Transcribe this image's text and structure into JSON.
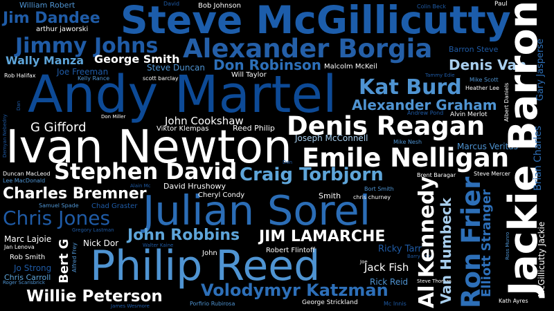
{
  "palette": {
    "background": "#000000",
    "navy": "#0d3c7e",
    "royal": "#1c5dab",
    "medium": "#2a6fb8",
    "sky": "#5ea5d9",
    "pale": "#a9cfee",
    "white": "#ffffff"
  },
  "words": [
    {
      "text": "Steve McGillicutty",
      "color": "#1c5dab"
    },
    {
      "text": "Andy Martel",
      "color": "#0d4a96"
    },
    {
      "text": "Ivan Newton",
      "color": "#ffffff"
    },
    {
      "text": "Julian Sorel",
      "color": "#2b6db6"
    },
    {
      "text": "Philip Reed",
      "color": "#4f94d2"
    },
    {
      "text": "Jackie Barron",
      "color": "#ffffff"
    },
    {
      "text": "Alexander Borgia",
      "color": "#245fa8"
    },
    {
      "text": "Denis Reagan",
      "color": "#ffffff"
    },
    {
      "text": "Emile Nelligan",
      "color": "#ffffff"
    },
    {
      "text": "Stephen David",
      "color": "#ffffff"
    },
    {
      "text": "Jimmy Johns",
      "color": "#1f5ba6"
    },
    {
      "text": "Jim Dandee",
      "color": "#1f5ba6"
    },
    {
      "text": "Kat Burd",
      "color": "#4f94d2"
    },
    {
      "text": "Craig Torbjorn",
      "color": "#5ea5d9"
    },
    {
      "text": "JIM LAMARCHE",
      "color": "#ffffff"
    },
    {
      "text": "Ron Frier",
      "color": "#2d6fb8"
    },
    {
      "text": "Al Kennedy",
      "color": "#ffffff"
    },
    {
      "text": "Chris Jones",
      "color": "#1f5ba6"
    },
    {
      "text": "John Robbins",
      "color": "#5ea5d9"
    },
    {
      "text": "Charles Bremner",
      "color": "#ffffff"
    },
    {
      "text": "Volodymyr Katzman",
      "color": "#2d6fb8"
    },
    {
      "text": "Willie Peterson",
      "color": "#ffffff"
    },
    {
      "text": "Alexander Graham",
      "color": "#4f94d2"
    },
    {
      "text": "Don Robinson",
      "color": "#2d6fb8"
    },
    {
      "text": "Denis Van",
      "color": "#a9cfee"
    },
    {
      "text": "George Smith",
      "color": "#ffffff"
    },
    {
      "text": "Wally Manza",
      "color": "#5ea5d9"
    },
    {
      "text": "G Gifford",
      "color": "#ffffff"
    },
    {
      "text": "Van Humbeck",
      "color": "#a9cfee"
    },
    {
      "text": "Elliott Stranger",
      "color": "#2d6fb8"
    },
    {
      "text": "Bert G",
      "color": "#ffffff"
    },
    {
      "text": "John Cookshaw",
      "color": "#ffffff"
    },
    {
      "text": "Joseph McConnell",
      "color": "#a9cfee"
    },
    {
      "text": "Jack Fish",
      "color": "#ffffff"
    },
    {
      "text": "Rick Reid",
      "color": "#4f94d2"
    },
    {
      "text": "Brian Charles",
      "color": "#2d6fb8"
    },
    {
      "text": "Gary Jasperse",
      "color": "#2d6fb8"
    },
    {
      "text": "McGillicutty Jackie",
      "color": "#ffffff"
    },
    {
      "text": "Ricky Tarr",
      "color": "#1f5ba6"
    },
    {
      "text": "Marcus Veritas",
      "color": "#4f94d2"
    },
    {
      "text": "Barron Steve",
      "color": "#1f5ba6"
    },
    {
      "text": "Steve Duncan",
      "color": "#4f94d2"
    },
    {
      "text": "Joe Freeman",
      "color": "#1f5ba6"
    },
    {
      "text": "Marc Lajoie",
      "color": "#ffffff"
    },
    {
      "text": "Jo Strong",
      "color": "#1f5ba6"
    },
    {
      "text": "Chris Carroll",
      "color": "#5ea5d9"
    },
    {
      "text": "Nick Dor",
      "color": "#ffffff"
    },
    {
      "text": "Rob Smith",
      "color": "#ffffff"
    },
    {
      "text": "Reed Philip",
      "color": "#ffffff"
    },
    {
      "text": "David Hrushowy",
      "color": "#ffffff"
    },
    {
      "text": "William Robert",
      "color": "#4f94d2"
    },
    {
      "text": "arthur jaworski",
      "color": "#ffffff"
    },
    {
      "text": "Bob Johnson",
      "color": "#ffffff"
    },
    {
      "text": "Will Taylor",
      "color": "#ffffff"
    },
    {
      "text": "Malcolm McKeil",
      "color": "#ffffff"
    },
    {
      "text": "Robert Flintoff",
      "color": "#ffffff"
    },
    {
      "text": "Viktor Klempas",
      "color": "#ffffff"
    },
    {
      "text": "Cheryl Condy",
      "color": "#ffffff"
    },
    {
      "text": "Smith",
      "color": "#ffffff"
    },
    {
      "text": "chris churney",
      "color": "#ffffff"
    },
    {
      "text": "Bort Smith",
      "color": "#4f94d2"
    },
    {
      "text": "Brent Baragar",
      "color": "#ffffff"
    },
    {
      "text": "Steve Mercer",
      "color": "#ffffff"
    },
    {
      "text": "Alvin Merlot",
      "color": "#ffffff"
    },
    {
      "text": "Heather Lee",
      "color": "#ffffff"
    },
    {
      "text": "Albert Daniels",
      "color": "#ffffff"
    },
    {
      "text": "Mike Scott",
      "color": "#4f94d2"
    },
    {
      "text": "Mike Nesh",
      "color": "#4f94d2"
    },
    {
      "text": "Andrew Pond",
      "color": "#1f5ba6"
    },
    {
      "text": "Tammy Edie",
      "color": "#1f5ba6"
    },
    {
      "text": "Colin Beck",
      "color": "#1f5ba6"
    },
    {
      "text": "Paul",
      "color": "#ffffff"
    },
    {
      "text": "David",
      "color": "#1f5ba6"
    },
    {
      "text": "Rob Halifax",
      "color": "#ffffff"
    },
    {
      "text": "Kelly Rance",
      "color": "#4f94d2"
    },
    {
      "text": "scott barclay",
      "color": "#ffffff"
    },
    {
      "text": "Don Miller",
      "color": "#ffffff"
    },
    {
      "text": "Duncan MacLeod",
      "color": "#ffffff"
    },
    {
      "text": "Lee MacDonald",
      "color": "#4f94d2"
    },
    {
      "text": "Alain Mc",
      "color": "#1f5ba6"
    },
    {
      "text": "Samuel Spade",
      "color": "#4f94d2"
    },
    {
      "text": "Chad Graster",
      "color": "#1f5ba6"
    },
    {
      "text": "Gregory Lastman",
      "color": "#1f5ba6"
    },
    {
      "text": "Walter Kaine",
      "color": "#1f5ba6"
    },
    {
      "text": "Jan Lenova",
      "color": "#ffffff"
    },
    {
      "text": "Roger Scarisbrick",
      "color": "#4f94d2"
    },
    {
      "text": "Alfred Frey",
      "color": "#4f94d2"
    },
    {
      "text": "James Wesmore",
      "color": "#1f5ba6"
    },
    {
      "text": "Porfirio Rubirosa",
      "color": "#4f94d2"
    },
    {
      "text": "George Strickland",
      "color": "#ffffff"
    },
    {
      "text": "Mc Innis",
      "color": "#1f5ba6"
    },
    {
      "text": "Steve Thomas",
      "color": "#ffffff"
    },
    {
      "text": "Barry Lane",
      "color": "#1f5ba6"
    },
    {
      "text": "Joe",
      "color": "#ffffff"
    },
    {
      "text": "John",
      "color": "#ffffff"
    },
    {
      "text": "Ross Munro",
      "color": "#4f94d2"
    },
    {
      "text": "Kath Ayres",
      "color": "#ffffff"
    },
    {
      "text": "Demyan Nebedny",
      "color": "#1f5ba6"
    },
    {
      "text": "Dan",
      "color": "#1f5ba6"
    },
    {
      "text": "Don",
      "color": "#1f5ba6"
    }
  ]
}
